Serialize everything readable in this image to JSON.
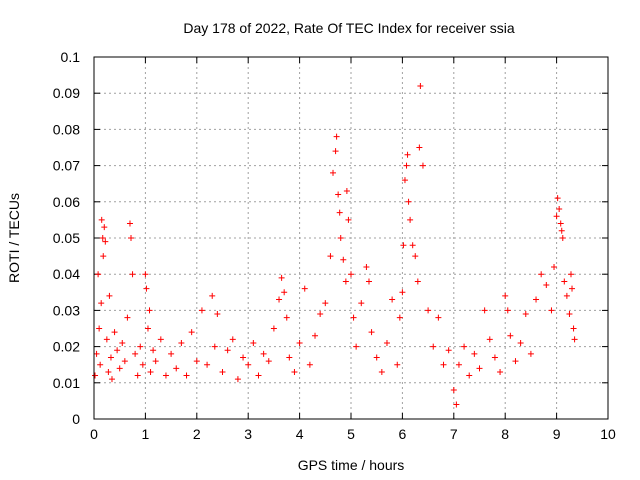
{
  "chart_data": {
    "type": "scatter",
    "title": "Day 178 of 2022, Rate Of TEC Index for receiver ssia",
    "xlabel": "GPS time / hours",
    "ylabel": "ROTI / TECUs",
    "xlim": [
      0,
      10
    ],
    "ylim": [
      0,
      0.1
    ],
    "grid": true,
    "marker": "+",
    "color": "#ff0000",
    "x_ticks": [
      "0",
      "1",
      "2",
      "3",
      "4",
      "5",
      "6",
      "7",
      "8",
      "9",
      "10"
    ],
    "y_ticks": [
      "0",
      "0.01",
      "0.02",
      "0.03",
      "0.04",
      "0.05",
      "0.06",
      "0.07",
      "0.08",
      "0.09",
      "0.1"
    ],
    "series": [
      {
        "name": "ROTI",
        "x": [
          0.02,
          0.05,
          0.08,
          0.1,
          0.12,
          0.14,
          0.15,
          0.17,
          0.18,
          0.2,
          0.22,
          0.25,
          0.28,
          0.3,
          0.33,
          0.35,
          0.4,
          0.45,
          0.5,
          0.55,
          0.6,
          0.65,
          0.7,
          0.72,
          0.75,
          0.8,
          0.85,
          0.9,
          0.95,
          1.0,
          1.02,
          1.05,
          1.08,
          1.1,
          1.15,
          1.2,
          1.3,
          1.4,
          1.5,
          1.6,
          1.7,
          1.8,
          1.9,
          2.0,
          2.1,
          2.2,
          2.3,
          2.35,
          2.4,
          2.5,
          2.6,
          2.7,
          2.8,
          2.9,
          3.0,
          3.1,
          3.2,
          3.3,
          3.4,
          3.5,
          3.6,
          3.65,
          3.7,
          3.75,
          3.8,
          3.9,
          4.0,
          4.1,
          4.2,
          4.3,
          4.4,
          4.5,
          4.6,
          4.65,
          4.7,
          4.72,
          4.75,
          4.78,
          4.8,
          4.85,
          4.9,
          4.92,
          4.95,
          5.0,
          5.05,
          5.1,
          5.2,
          5.3,
          5.35,
          5.4,
          5.5,
          5.6,
          5.7,
          5.8,
          5.9,
          5.95,
          6.0,
          6.02,
          6.05,
          6.08,
          6.1,
          6.12,
          6.15,
          6.2,
          6.25,
          6.3,
          6.33,
          6.35,
          6.4,
          6.5,
          6.6,
          6.7,
          6.8,
          6.9,
          7.0,
          7.05,
          7.1,
          7.2,
          7.3,
          7.4,
          7.5,
          7.6,
          7.7,
          7.8,
          7.9,
          8.0,
          8.05,
          8.1,
          8.2,
          8.3,
          8.4,
          8.5,
          8.6,
          8.7,
          8.8,
          8.9,
          8.95,
          9.0,
          9.02,
          9.05,
          9.08,
          9.1,
          9.12,
          9.15,
          9.2,
          9.25,
          9.28,
          9.3,
          9.33,
          9.35
        ],
        "y": [
          0.012,
          0.018,
          0.04,
          0.025,
          0.015,
          0.032,
          0.055,
          0.05,
          0.045,
          0.053,
          0.049,
          0.022,
          0.013,
          0.034,
          0.017,
          0.011,
          0.024,
          0.019,
          0.014,
          0.021,
          0.016,
          0.028,
          0.054,
          0.05,
          0.04,
          0.018,
          0.012,
          0.02,
          0.015,
          0.04,
          0.036,
          0.025,
          0.03,
          0.013,
          0.019,
          0.016,
          0.022,
          0.012,
          0.018,
          0.014,
          0.021,
          0.012,
          0.024,
          0.016,
          0.03,
          0.015,
          0.034,
          0.02,
          0.029,
          0.013,
          0.019,
          0.022,
          0.011,
          0.017,
          0.015,
          0.021,
          0.012,
          0.018,
          0.016,
          0.025,
          0.033,
          0.039,
          0.035,
          0.028,
          0.017,
          0.013,
          0.021,
          0.036,
          0.015,
          0.023,
          0.029,
          0.032,
          0.045,
          0.068,
          0.074,
          0.078,
          0.062,
          0.057,
          0.05,
          0.044,
          0.038,
          0.063,
          0.055,
          0.04,
          0.028,
          0.02,
          0.032,
          0.042,
          0.038,
          0.024,
          0.017,
          0.013,
          0.021,
          0.033,
          0.015,
          0.028,
          0.035,
          0.048,
          0.066,
          0.07,
          0.073,
          0.06,
          0.055,
          0.048,
          0.045,
          0.038,
          0.075,
          0.092,
          0.07,
          0.03,
          0.02,
          0.028,
          0.015,
          0.019,
          0.008,
          0.004,
          0.015,
          0.02,
          0.012,
          0.018,
          0.014,
          0.03,
          0.022,
          0.017,
          0.013,
          0.034,
          0.03,
          0.023,
          0.016,
          0.021,
          0.029,
          0.018,
          0.033,
          0.04,
          0.037,
          0.03,
          0.042,
          0.056,
          0.061,
          0.058,
          0.054,
          0.052,
          0.05,
          0.038,
          0.034,
          0.029,
          0.04,
          0.036,
          0.025,
          0.022
        ]
      }
    ]
  }
}
